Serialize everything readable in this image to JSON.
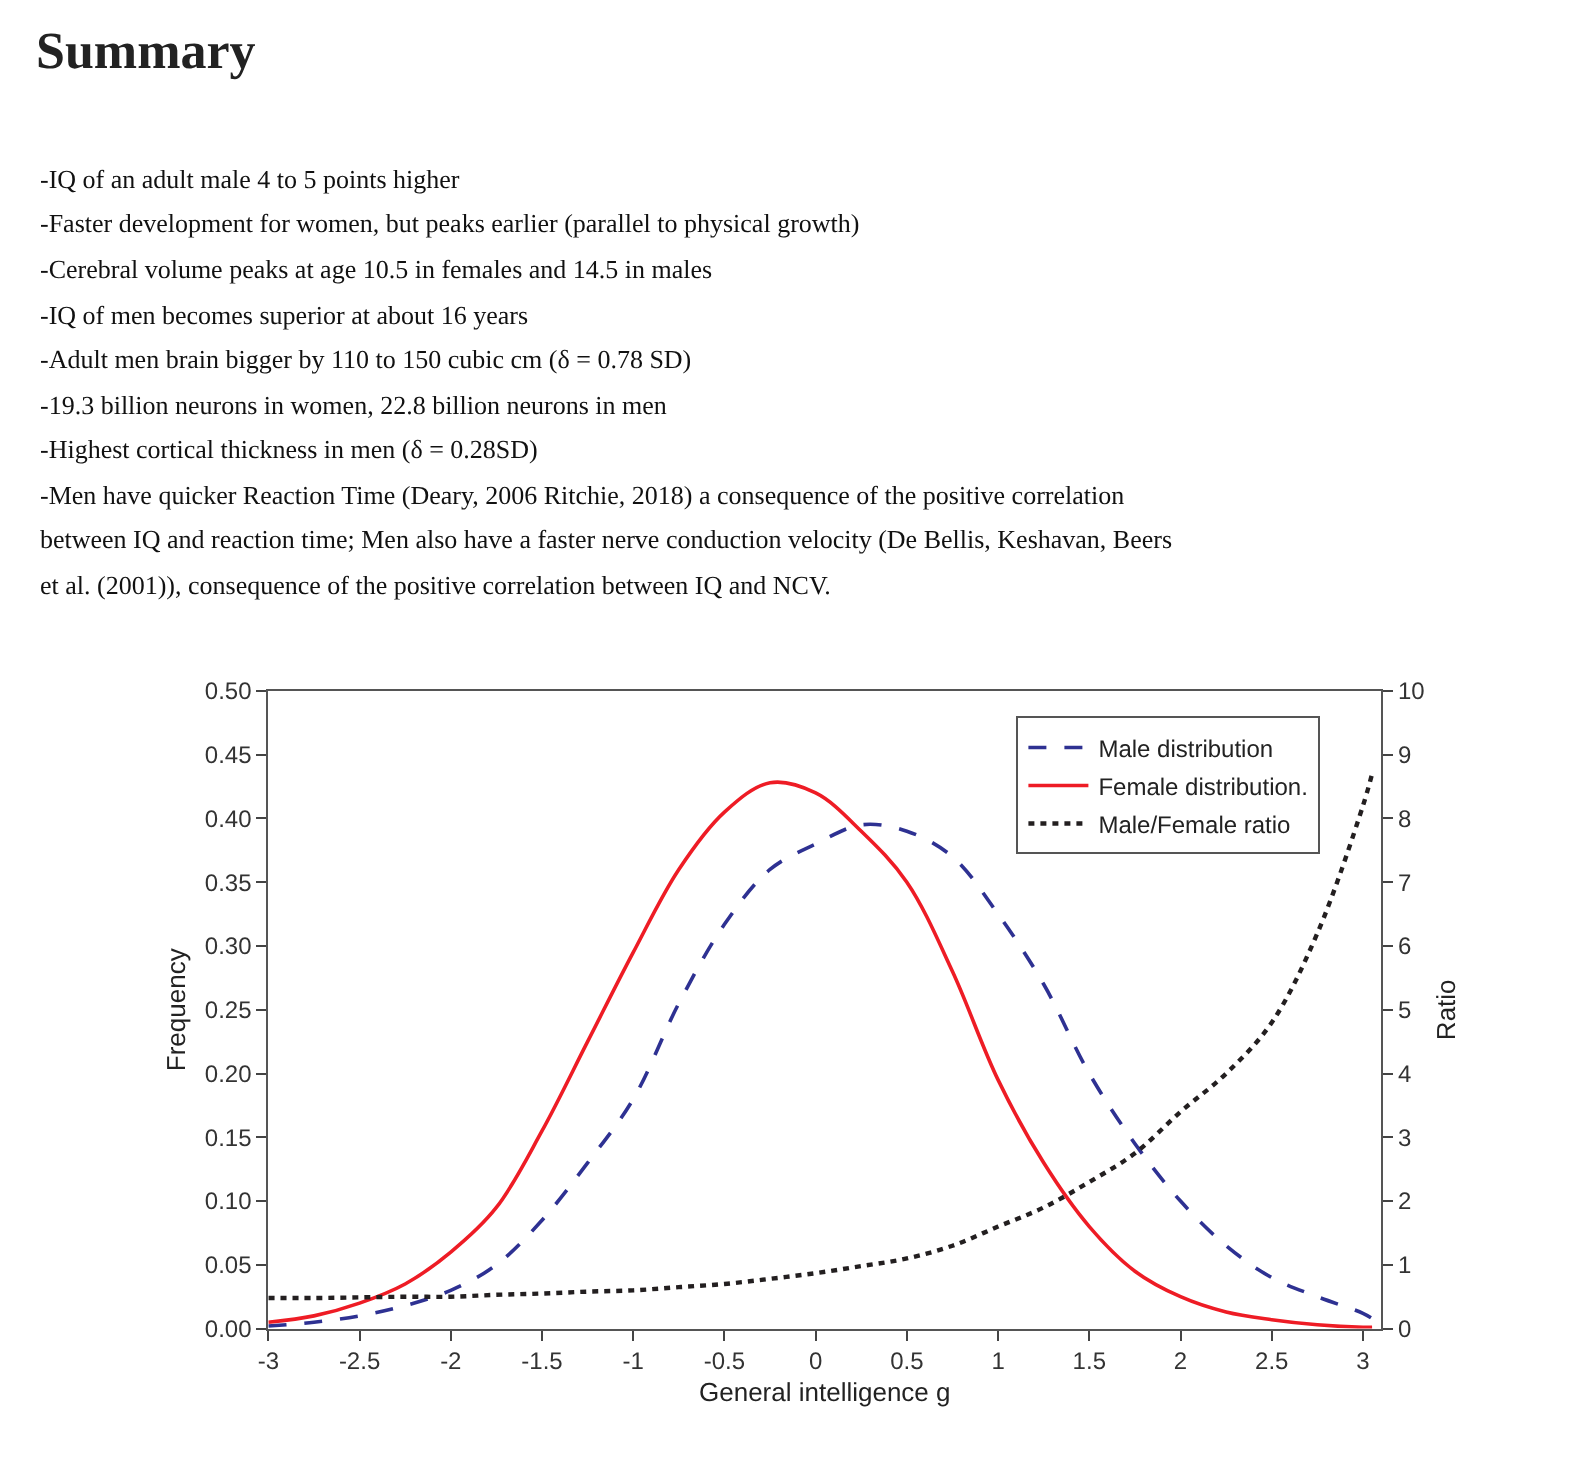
{
  "chart_data": {
    "type": "line",
    "title": "Summary",
    "xlabel": "General intelligence g",
    "ylabel": "Frequency",
    "y2label": "Ratio",
    "annotations": [
      "-IQ of an adult male 4 to 5 points higher",
      "-Faster development for women, but peaks earlier (parallel to physical growth)",
      "-Cerebral volume peaks at age 10.5 in females and 14.5 in males",
      "-IQ of men becomes superior at about 16 years",
      "-Adult men brain bigger by 110 to 150 cubic cm (δ = 0.78 SD)",
      "-19.3 billion neurons in women, 22.8 billion neurons in men",
      "-Highest cortical thickness in men (δ = 0.28SD)",
      "-Men have quicker Reaction Time (Deary, 2006 Ritchie, 2018) a consequence of the positive correlation between IQ and reaction time; Men also have a faster nerve conduction velocity (De Bellis, Keshavan, Beers et al. (2001)), consequence of the positive correlation between IQ and NCV."
    ],
    "x": [
      -3,
      -2.75,
      -2.5,
      -2.25,
      -2,
      -1.75,
      -1.5,
      -1.25,
      -1,
      -0.75,
      -0.5,
      -0.25,
      0,
      0.25,
      0.5,
      0.75,
      1,
      1.25,
      1.5,
      1.75,
      2,
      2.25,
      2.5,
      2.75,
      3,
      3.05
    ],
    "series": [
      {
        "name": "Male distribution",
        "color": "#2e3192",
        "line_style": "dashed",
        "values": [
          0.002,
          0.005,
          0.01,
          0.018,
          0.03,
          0.05,
          0.085,
          0.13,
          0.18,
          0.255,
          0.317,
          0.36,
          0.38,
          0.395,
          0.39,
          0.37,
          0.325,
          0.27,
          0.2,
          0.145,
          0.1,
          0.065,
          0.04,
          0.025,
          0.012,
          0.008
        ]
      },
      {
        "name": "Female distribution.",
        "color": "#ee1c25",
        "line_style": "solid",
        "values": [
          0.005,
          0.01,
          0.02,
          0.035,
          0.06,
          0.095,
          0.155,
          0.225,
          0.295,
          0.36,
          0.405,
          0.428,
          0.42,
          0.39,
          0.35,
          0.28,
          0.195,
          0.13,
          0.08,
          0.045,
          0.025,
          0.013,
          0.007,
          0.003,
          0.001,
          0.001
        ]
      },
      {
        "name": "Male/Female ratio",
        "color": "#231f20",
        "line_style": "dotted",
        "axis": "y2",
        "values": [
          0.48,
          0.48,
          0.49,
          0.5,
          0.5,
          0.53,
          0.55,
          0.58,
          0.6,
          0.65,
          0.7,
          0.78,
          0.87,
          0.98,
          1.1,
          1.3,
          1.6,
          1.9,
          2.3,
          2.75,
          3.4,
          4.0,
          4.8,
          6.2,
          8.2,
          8.7
        ]
      }
    ],
    "xlim": [
      -3,
      3.1
    ],
    "xticks": [
      -3,
      -2.5,
      -2,
      -1.5,
      -1,
      -0.5,
      0,
      0.5,
      1,
      1.5,
      2,
      2.5,
      3
    ],
    "ylim": [
      0,
      0.5
    ],
    "yticks": [
      {
        "value": 0,
        "label": "0.00"
      },
      {
        "value": 0.05,
        "label": "0.05"
      },
      {
        "value": 0.1,
        "label": "0.10"
      },
      {
        "value": 0.15,
        "label": "0.15"
      },
      {
        "value": 0.2,
        "label": "0.20"
      },
      {
        "value": 0.25,
        "label": "0.25"
      },
      {
        "value": 0.3,
        "label": "0.30"
      },
      {
        "value": 0.35,
        "label": "0.35"
      },
      {
        "value": 0.4,
        "label": "0.40"
      },
      {
        "value": 0.45,
        "label": "0.45"
      },
      {
        "value": 0.5,
        "label": "0.50"
      }
    ],
    "y2lim": [
      0,
      10
    ],
    "y2ticks": [
      0,
      1,
      2,
      3,
      4,
      5,
      6,
      7,
      8,
      9,
      10
    ],
    "legend": "top right",
    "marker": "none"
  }
}
